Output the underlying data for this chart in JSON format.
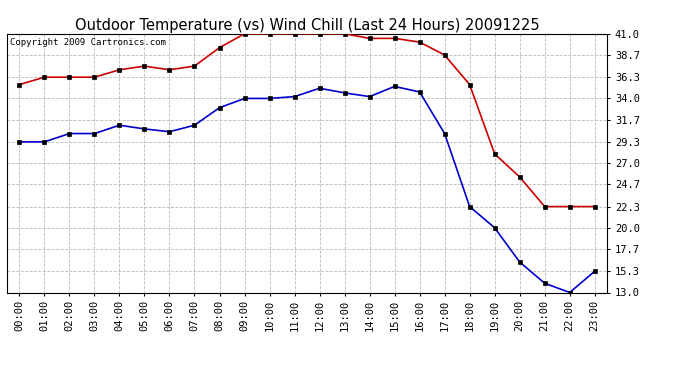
{
  "title": "Outdoor Temperature (vs) Wind Chill (Last 24 Hours) 20091225",
  "copyright": "Copyright 2009 Cartronics.com",
  "x_labels": [
    "00:00",
    "01:00",
    "02:00",
    "03:00",
    "04:00",
    "05:00",
    "06:00",
    "07:00",
    "08:00",
    "09:00",
    "10:00",
    "11:00",
    "12:00",
    "13:00",
    "14:00",
    "15:00",
    "16:00",
    "17:00",
    "18:00",
    "19:00",
    "20:00",
    "21:00",
    "22:00",
    "23:00"
  ],
  "temp_red": [
    35.5,
    36.3,
    36.3,
    36.3,
    37.1,
    37.5,
    37.1,
    37.5,
    39.5,
    41.0,
    41.0,
    41.0,
    41.0,
    41.0,
    40.5,
    40.5,
    40.1,
    38.7,
    35.5,
    28.0,
    25.5,
    22.3,
    22.3,
    22.3
  ],
  "temp_blue": [
    29.3,
    29.3,
    30.2,
    30.2,
    31.1,
    30.7,
    30.4,
    31.1,
    33.0,
    34.0,
    34.0,
    34.2,
    35.1,
    34.6,
    34.2,
    35.3,
    34.7,
    30.2,
    22.3,
    20.0,
    16.3,
    14.0,
    13.0,
    15.3
  ],
  "y_ticks": [
    13.0,
    15.3,
    17.7,
    20.0,
    22.3,
    24.7,
    27.0,
    29.3,
    31.7,
    34.0,
    36.3,
    38.7,
    41.0
  ],
  "ylim": [
    13.0,
    41.0
  ],
  "red_color": "#cc0000",
  "blue_color": "#0000cc",
  "grid_color": "#bbbbbb",
  "bg_color": "#ffffff",
  "title_fontsize": 10.5,
  "copyright_fontsize": 6.5,
  "tick_fontsize": 7.5
}
